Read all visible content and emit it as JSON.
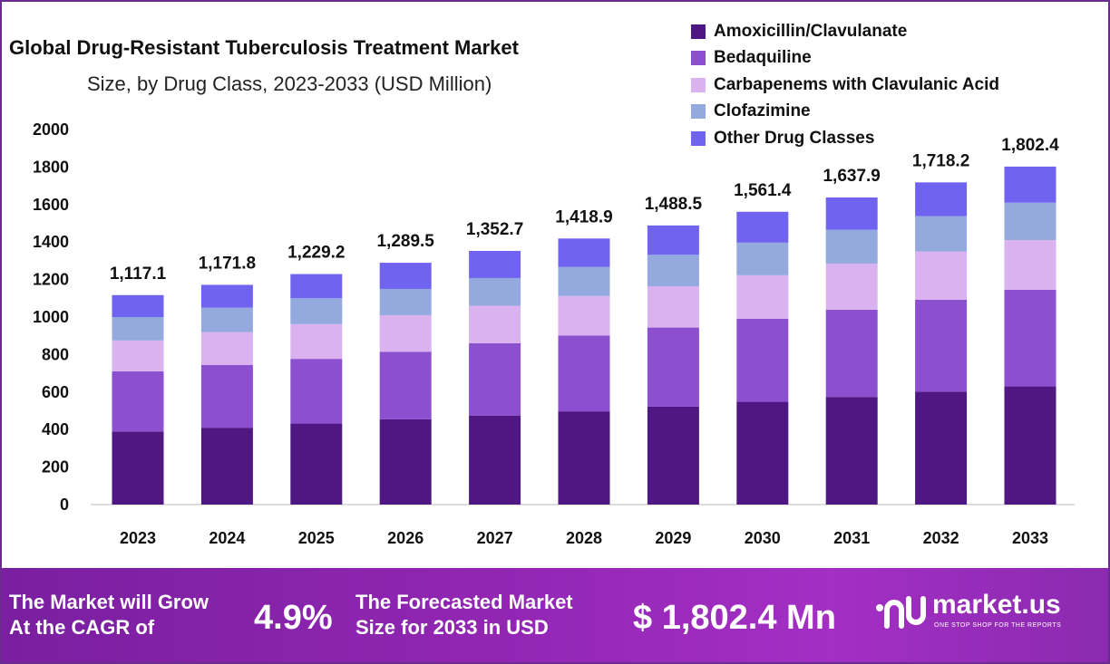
{
  "header": {
    "title": "Global Drug-Resistant Tuberculosis Treatment Market",
    "subtitle": "Size, by Drug Class, 2023-2033 (USD Million)"
  },
  "legend": [
    {
      "label": "Amoxicillin/Clavulanate",
      "color": "#4f1782"
    },
    {
      "label": "Bedaquiline",
      "color": "#8b4fd0"
    },
    {
      "label": "Carbapenems with Clavulanic Acid",
      "color": "#d9b2ef"
    },
    {
      "label": "Clofazimine",
      "color": "#94a9de"
    },
    {
      "label": "Other Drug Classes",
      "color": "#6f63f0"
    }
  ],
  "chart_data": {
    "type": "bar",
    "stacked": true,
    "categories": [
      "2023",
      "2024",
      "2025",
      "2026",
      "2027",
      "2028",
      "2029",
      "2030",
      "2031",
      "2032",
      "2033"
    ],
    "series": [
      {
        "name": "Amoxicillin/Clavulanate",
        "color": "#4f1782",
        "values": [
          390,
          410,
          432,
          455,
          475,
          497,
          522,
          548,
          574,
          602,
          630
        ]
      },
      {
        "name": "Bedaquiline",
        "color": "#8b4fd0",
        "values": [
          320,
          335,
          345,
          360,
          385,
          405,
          422,
          443,
          465,
          490,
          515
        ]
      },
      {
        "name": "Carbapenems with Clavulanic Acid",
        "color": "#d9b2ef",
        "values": [
          165,
          175,
          185,
          195,
          200,
          210,
          220,
          232,
          246,
          258,
          265
        ]
      },
      {
        "name": "Clofazimine",
        "color": "#94a9de",
        "values": [
          125,
          130,
          138,
          140,
          148,
          155,
          168,
          174,
          180,
          188,
          200
        ]
      },
      {
        "name": "Other Drug Classes",
        "color": "#6f63f0",
        "values": [
          117.1,
          121.8,
          129.2,
          139.5,
          144.7,
          151.9,
          156.5,
          164.4,
          172.9,
          180.2,
          192.4
        ]
      }
    ],
    "totals": [
      "1,117.1",
      "1,171.8",
      "1,229.2",
      "1,289.5",
      "1,352.7",
      "1,418.9",
      "1,488.5",
      "1,561.4",
      "1,637.9",
      "1,718.2",
      "1,802.4"
    ],
    "yticks": [
      "0",
      "200",
      "400",
      "600",
      "800",
      "1000",
      "1200",
      "1400",
      "1600",
      "1800",
      "2000"
    ],
    "ylim": [
      0,
      2000
    ],
    "legend_position": "top-right"
  },
  "banner": {
    "cagr_text_line1": "The Market will Grow",
    "cagr_text_line2": "At the CAGR of",
    "cagr_value": "4.9%",
    "forecast_text_line1": "The Forecasted Market",
    "forecast_text_line2": "Size for 2033 in USD",
    "forecast_value": "$ 1,802.4 Mn",
    "brand_name": "market.us",
    "brand_tagline": "ONE STOP SHOP FOR THE REPORTS"
  }
}
